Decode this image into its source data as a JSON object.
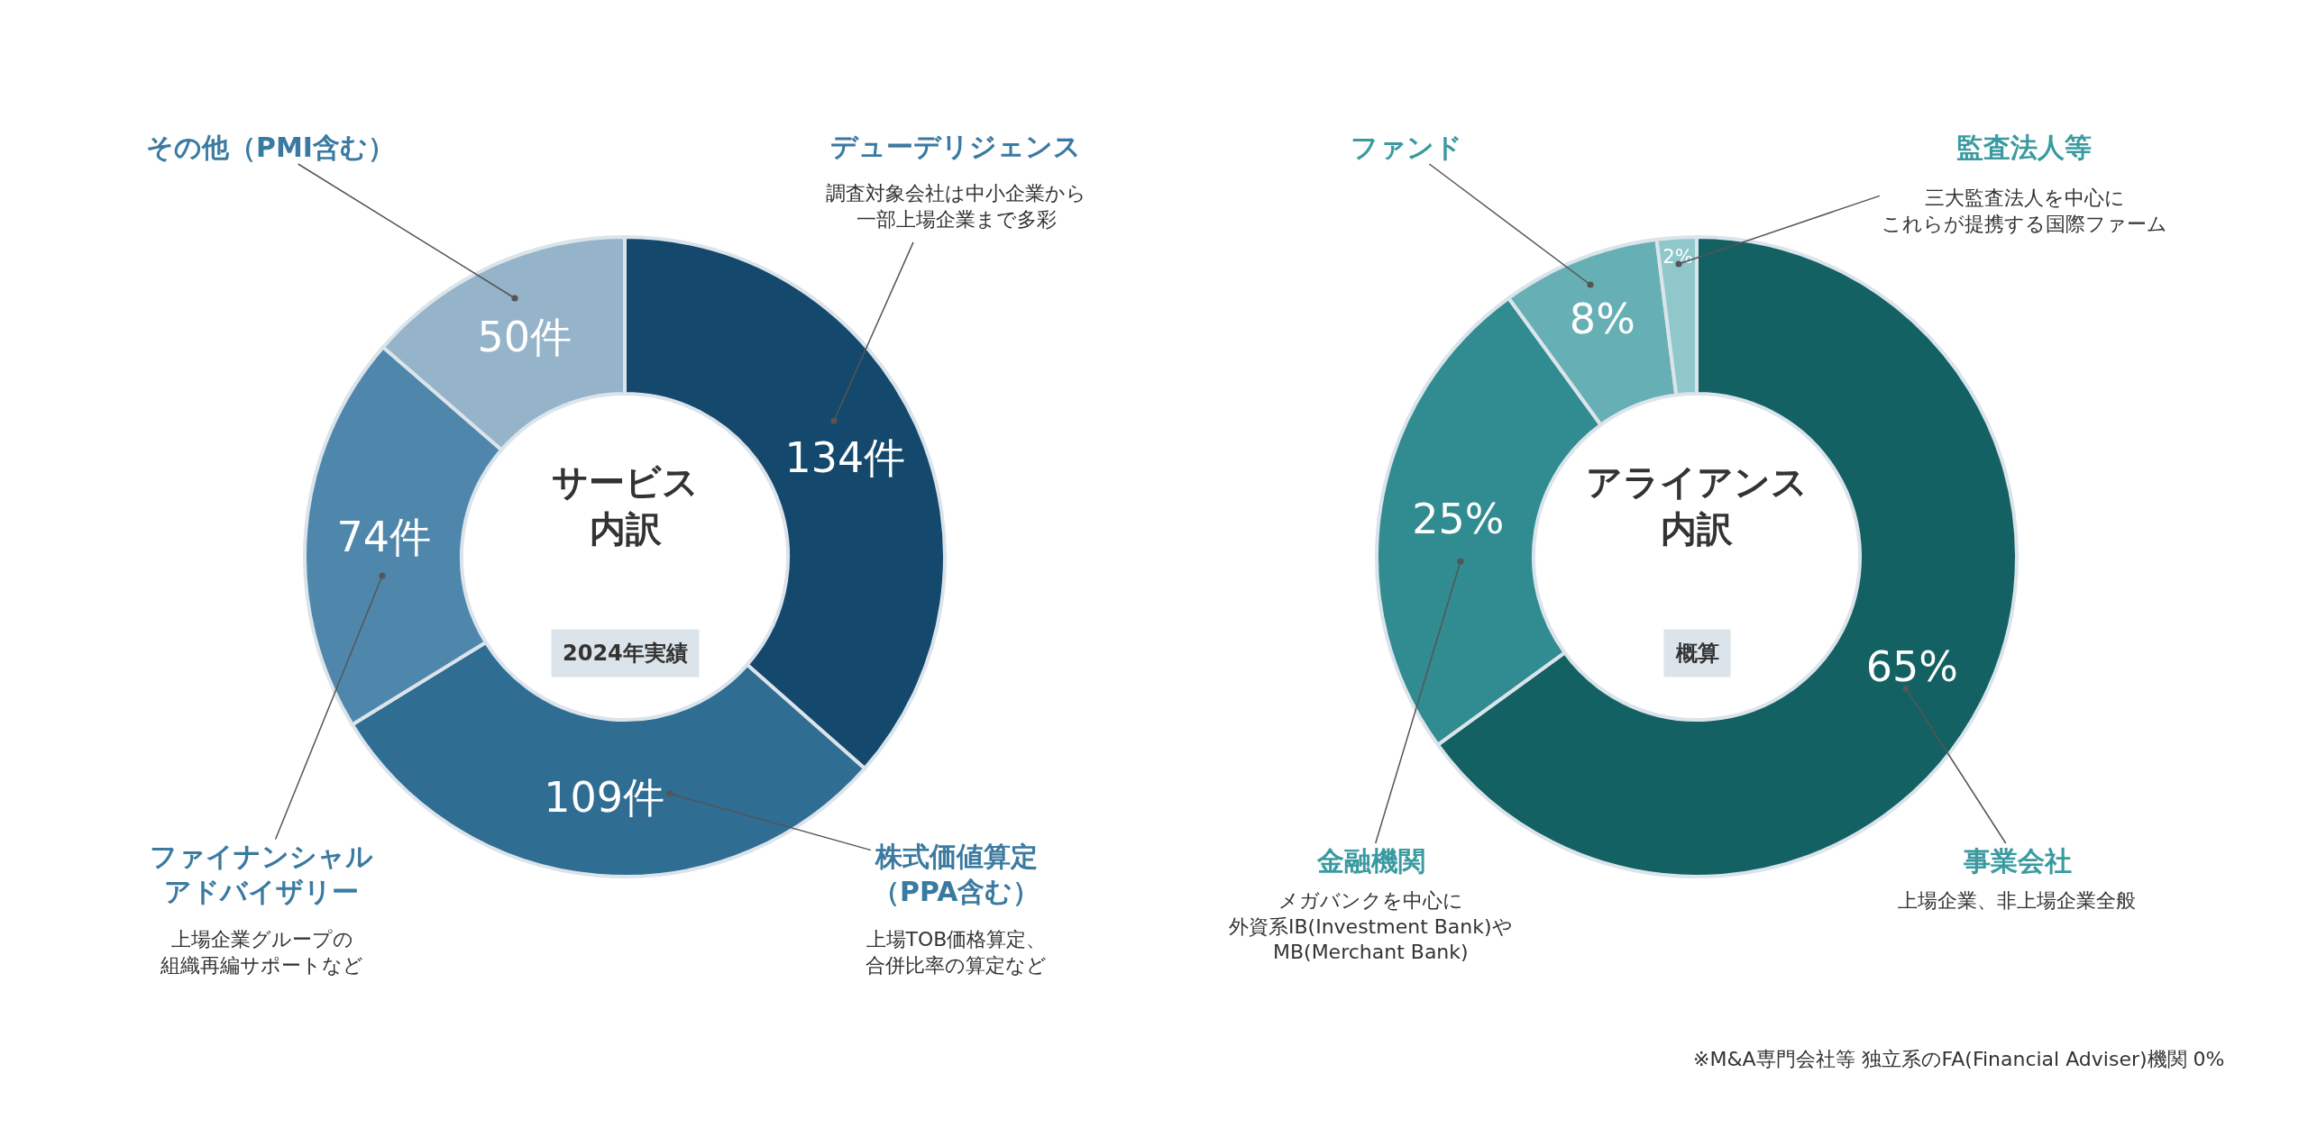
{
  "chart_data": [
    {
      "type": "donut",
      "title": "サービス内訳",
      "subtitle": "2024年実績",
      "categories": [
        "デューデリジェンス",
        "株式価値算定（PPA含む）",
        "ファイナンシャルアドバイザリー",
        "その他（PMI含む）"
      ],
      "values": [
        134,
        109,
        74,
        50
      ],
      "value_labels": [
        "134件",
        "109件",
        "74件",
        "50件"
      ],
      "colors": [
        "#14486c",
        "#2f6d93",
        "#4f87ac",
        "#95b3c9"
      ],
      "annotations": [
        "調査対象会社は中小企業から一部上場企業まで多彩",
        "上場TOB価格算定、合併比率の算定など",
        "上場企業グループの組織再編サポートなど"
      ]
    },
    {
      "type": "donut",
      "title": "アライアンス内訳",
      "subtitle": "概算",
      "categories": [
        "事業会社",
        "金融機関",
        "ファンド",
        "監査法人等"
      ],
      "values": [
        65,
        25,
        8,
        2
      ],
      "value_labels": [
        "65%",
        "25%",
        "8%",
        "2%"
      ],
      "colors": [
        "#136163",
        "#308c91",
        "#66b0b5",
        "#8fc7cb"
      ],
      "annotations": [
        "上場企業、非上場企業全般",
        "メガバンクを中心に外資系IB(Investment Bank)やMB(Merchant Bank)",
        "三大監査法人を中心にこれらが提携する国際ファーム",
        "※M&A専門会社等 独立系のFA(Financial Adviser)機関 0%"
      ]
    }
  ]
}
